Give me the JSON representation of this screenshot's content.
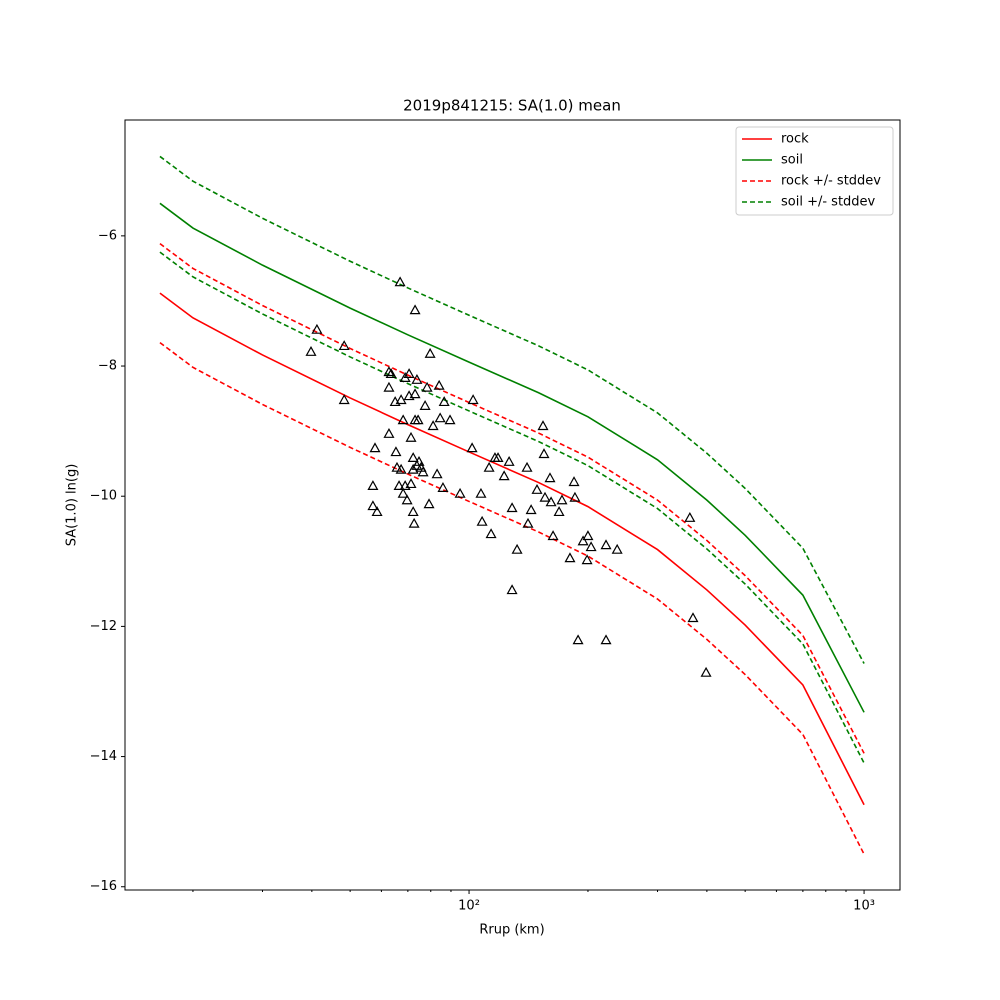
{
  "chart_data": {
    "type": "line",
    "title": "2019p841215: SA(1.0) mean",
    "xlabel": "Rrup (km)",
    "ylabel": "SA(1.0) ln(g)",
    "xscale": "log",
    "xlim": [
      13.46,
      1233
    ],
    "ylim": [
      -16.05,
      -4.22
    ],
    "xticks": [
      {
        "value": 100,
        "label": "10²"
      },
      {
        "value": 1000,
        "label": "10³"
      }
    ],
    "xminorticks": [
      20,
      30,
      40,
      50,
      60,
      70,
      80,
      90,
      200,
      300,
      400,
      500,
      600,
      700,
      800,
      900
    ],
    "yticks": [
      {
        "value": -16,
        "label": "−16"
      },
      {
        "value": -14,
        "label": "−14"
      },
      {
        "value": -12,
        "label": "−12"
      },
      {
        "value": -10,
        "label": "−10"
      },
      {
        "value": -8,
        "label": "−8"
      },
      {
        "value": -6,
        "label": "−6"
      }
    ],
    "legend": "upper right",
    "x": [
      16.5,
      20,
      30,
      50,
      70,
      100,
      150,
      200,
      300,
      400,
      500,
      700,
      1000
    ],
    "series": [
      {
        "name": "rock",
        "color": "#ff0000",
        "dash": false,
        "values": [
          -6.88,
          -7.26,
          -7.83,
          -8.49,
          -8.9,
          -9.32,
          -9.79,
          -10.16,
          -10.82,
          -11.44,
          -11.98,
          -12.9,
          -14.74
        ]
      },
      {
        "name": "soil",
        "color": "#008000",
        "dash": false,
        "values": [
          -5.5,
          -5.88,
          -6.45,
          -7.11,
          -7.52,
          -7.94,
          -8.41,
          -8.78,
          -9.44,
          -10.06,
          -10.6,
          -11.52,
          -13.32
        ]
      },
      {
        "name": "rock +/- stddev",
        "color": "#ff0000",
        "dash": true,
        "values": [
          -6.12,
          -6.5,
          -7.07,
          -7.73,
          -8.14,
          -8.56,
          -9.03,
          -9.4,
          -10.06,
          -10.68,
          -11.22,
          -12.14,
          -13.95
        ],
        "values_lower": [
          -7.64,
          -8.02,
          -8.59,
          -9.25,
          -9.66,
          -10.08,
          -10.55,
          -10.92,
          -11.58,
          -12.2,
          -12.74,
          -13.66,
          -15.5
        ]
      },
      {
        "name": "soil +/- stddev",
        "color": "#008000",
        "dash": true,
        "values": [
          -4.78,
          -5.16,
          -5.73,
          -6.39,
          -6.8,
          -7.22,
          -7.69,
          -8.06,
          -8.72,
          -9.34,
          -9.88,
          -10.8,
          -12.57
        ],
        "values_lower": [
          -6.25,
          -6.63,
          -7.2,
          -7.86,
          -8.27,
          -8.69,
          -9.16,
          -9.53,
          -10.19,
          -10.81,
          -11.35,
          -12.27,
          -14.1
        ]
      }
    ],
    "points": {
      "color": "#000000",
      "x": [
        39.8,
        41.2,
        48.3,
        48.3,
        57.8,
        57.1,
        57.1,
        58.5,
        62.7,
        63.5,
        62.7,
        62.7,
        65.0,
        65.3,
        65.7,
        66.5,
        66.9,
        67.3,
        68.1,
        67.3,
        68.1,
        68.9,
        68.9,
        69.7,
        70.5,
        70.5,
        71.3,
        71.3,
        72.2,
        72.2,
        72.2,
        72.6,
        73.0,
        73.0,
        73.0,
        73.8,
        73.8,
        74.3,
        74.7,
        75.6,
        76.5,
        77.4,
        78.3,
        79.2,
        79.7,
        81.1,
        83.0,
        84.0,
        84.5,
        85.9,
        86.5,
        89.5,
        94.9,
        101.8,
        102.4,
        107.2,
        107.9,
        112.4,
        113.7,
        116.3,
        118.4,
        122.7,
        126.3,
        128.5,
        128.5,
        132.3,
        140.2,
        141.0,
        143.6,
        148.6,
        153.9,
        154.8,
        155.7,
        160.3,
        161.3,
        163.2,
        169.0,
        171.9,
        180.1,
        184.4,
        185.4,
        188.8,
        194.4,
        199.0,
        200.0,
        203.7,
        222.2,
        222.2,
        237.1,
        362.2,
        368.9,
        398.1
      ],
      "values": [
        -7.78,
        -7.44,
        -7.69,
        -8.52,
        -9.26,
        -9.84,
        -10.15,
        -10.24,
        -8.09,
        -8.12,
        -8.33,
        -9.04,
        -8.55,
        -9.32,
        -9.56,
        -9.84,
        -6.71,
        -8.52,
        -8.83,
        -9.59,
        -9.96,
        -8.18,
        -9.84,
        -10.06,
        -8.12,
        -8.46,
        -9.1,
        -9.81,
        -9.41,
        -9.59,
        -10.24,
        -10.42,
        -7.14,
        -8.43,
        -8.83,
        -8.21,
        -9.53,
        -8.83,
        -9.47,
        -9.56,
        -9.63,
        -8.61,
        -8.33,
        -10.12,
        -7.81,
        -8.92,
        -9.66,
        -8.3,
        -8.8,
        -9.87,
        -8.55,
        -8.83,
        -9.96,
        -9.26,
        -8.52,
        -9.96,
        -10.39,
        -9.56,
        -10.58,
        -9.41,
        -9.41,
        -9.69,
        -9.47,
        -10.18,
        -11.44,
        -10.82,
        -9.56,
        -10.42,
        -10.21,
        -9.9,
        -8.92,
        -9.35,
        -10.02,
        -9.72,
        -10.09,
        -10.61,
        -10.24,
        -10.06,
        -10.95,
        -9.78,
        -10.02,
        -12.21,
        -10.69,
        -10.98,
        -10.61,
        -10.78,
        -12.21,
        -10.75,
        -10.82,
        -10.33,
        -11.87,
        -12.71
      ]
    }
  }
}
